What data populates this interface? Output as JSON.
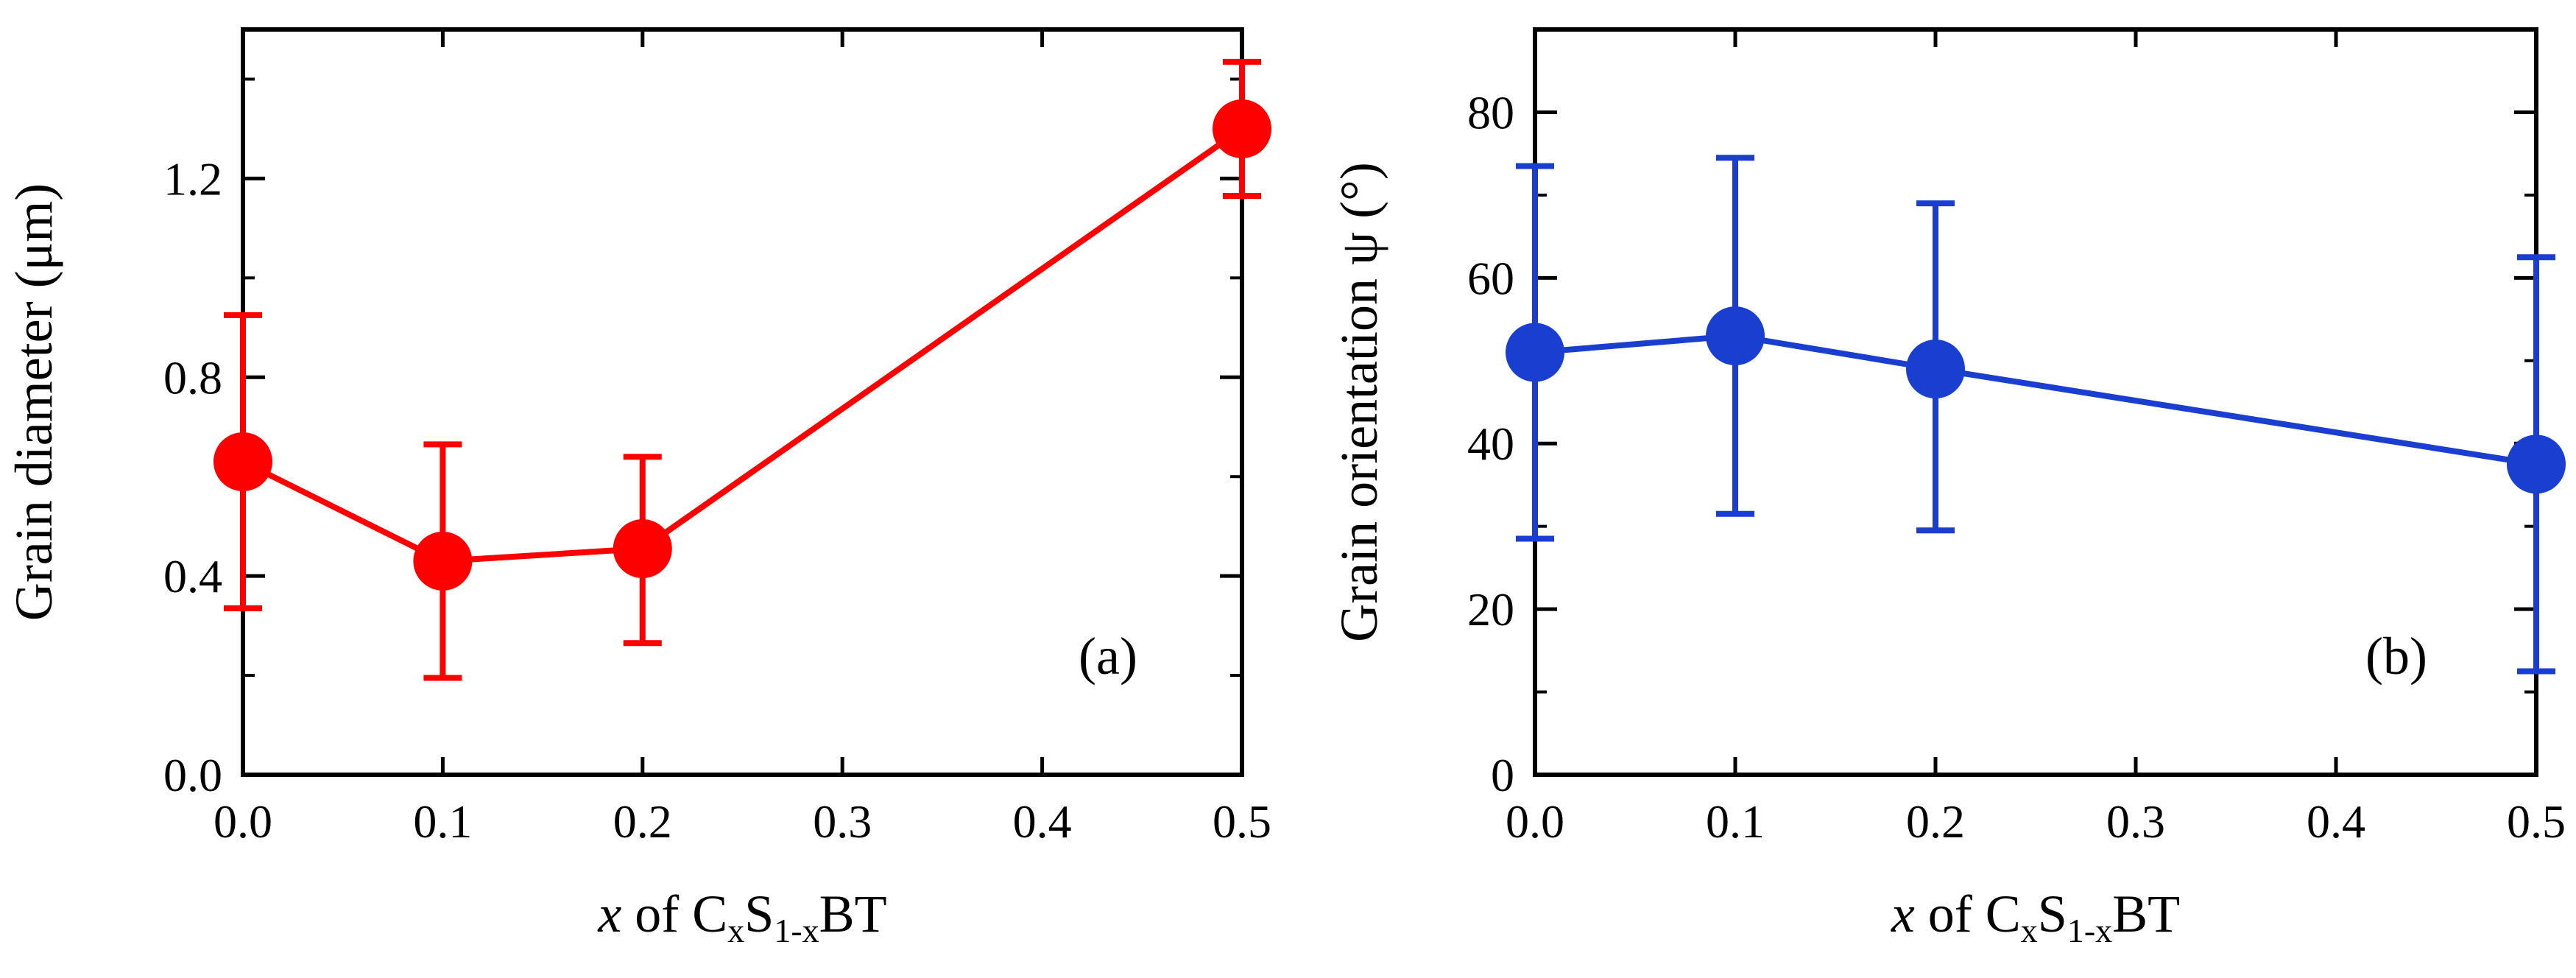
{
  "chart_data": [
    {
      "type": "line",
      "panel_label": "(a)",
      "x": [
        0.0,
        0.1,
        0.2,
        0.5
      ],
      "series": [
        {
          "values": [
            0.63,
            0.43,
            0.455,
            1.3
          ],
          "err_low": [
            0.295,
            0.235,
            0.19,
            0.135
          ],
          "err_high": [
            0.295,
            0.235,
            0.185,
            0.135
          ],
          "color": "#ff0000"
        }
      ],
      "xlabel_parts": [
        "x",
        " of C",
        "x",
        "S",
        "1-x",
        "BT"
      ],
      "ylabel": "Grain diameter (μm)",
      "xlim": [
        0.0,
        0.5
      ],
      "ylim": [
        0.0,
        1.5
      ],
      "xticks": [
        0.0,
        0.1,
        0.2,
        0.3,
        0.4,
        0.5
      ],
      "xtick_labels": [
        "0.0",
        "0.1",
        "0.2",
        "0.3",
        "0.4",
        "0.5"
      ],
      "yticks": [
        0.0,
        0.4,
        0.8,
        1.2
      ],
      "ytick_labels": [
        "0.0",
        "0.4",
        "0.8",
        "1.2"
      ],
      "y_minor_ticks": [
        0.2,
        0.6,
        1.0,
        1.4
      ],
      "grid": false
    },
    {
      "type": "line",
      "panel_label": "(b)",
      "x": [
        0.0,
        0.1,
        0.2,
        0.5
      ],
      "series": [
        {
          "values": [
            51,
            53,
            49,
            37.5
          ],
          "err_low": [
            22.5,
            21.5,
            19.5,
            25
          ],
          "err_high": [
            22.5,
            21.5,
            20,
            25
          ],
          "color": "#1a3fd0"
        }
      ],
      "xlabel_parts": [
        "x",
        " of C",
        "x",
        "S",
        "1-x",
        "BT"
      ],
      "ylabel": "Grain orientation ψ (°)",
      "xlim": [
        0.0,
        0.5
      ],
      "ylim": [
        0,
        90
      ],
      "xticks": [
        0.0,
        0.1,
        0.2,
        0.3,
        0.4,
        0.5
      ],
      "xtick_labels": [
        "0.0",
        "0.1",
        "0.2",
        "0.3",
        "0.4",
        "0.5"
      ],
      "yticks": [
        0,
        20,
        40,
        60,
        80
      ],
      "ytick_labels": [
        "0",
        "20",
        "40",
        "60",
        "80"
      ],
      "y_minor_ticks": [
        10,
        30,
        50,
        70
      ],
      "grid": false
    }
  ]
}
